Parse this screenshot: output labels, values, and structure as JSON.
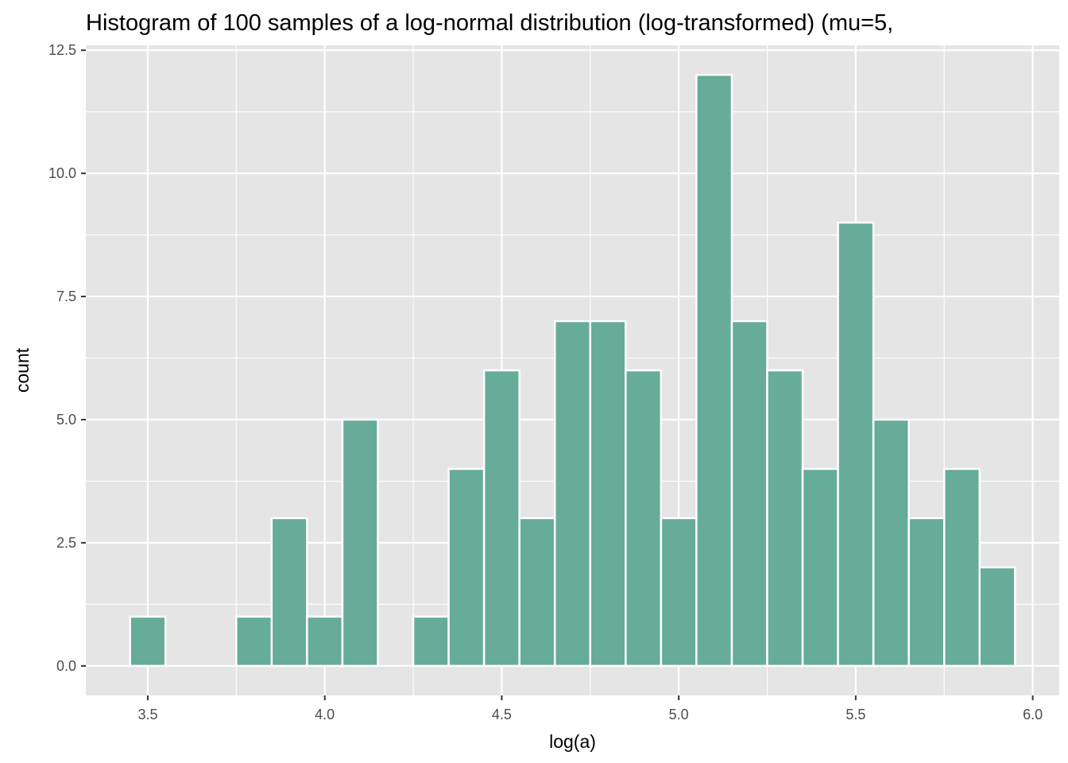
{
  "chart_data": {
    "type": "bar",
    "title": "Histogram of 100 samples of a log-normal distribution (log-transformed) (mu=5,",
    "xlabel": "log(a)",
    "ylabel": "count",
    "bin_width": 0.1,
    "bins": [
      {
        "x": 3.5,
        "count": 1
      },
      {
        "x": 3.6,
        "count": 0
      },
      {
        "x": 3.7,
        "count": 0
      },
      {
        "x": 3.8,
        "count": 1
      },
      {
        "x": 3.9,
        "count": 3
      },
      {
        "x": 4.0,
        "count": 1
      },
      {
        "x": 4.1,
        "count": 5
      },
      {
        "x": 4.2,
        "count": 0
      },
      {
        "x": 4.3,
        "count": 1
      },
      {
        "x": 4.4,
        "count": 4
      },
      {
        "x": 4.5,
        "count": 6
      },
      {
        "x": 4.6,
        "count": 3
      },
      {
        "x": 4.7,
        "count": 7
      },
      {
        "x": 4.8,
        "count": 7
      },
      {
        "x": 4.9,
        "count": 6
      },
      {
        "x": 5.0,
        "count": 3
      },
      {
        "x": 5.1,
        "count": 12
      },
      {
        "x": 5.2,
        "count": 7
      },
      {
        "x": 5.3,
        "count": 6
      },
      {
        "x": 5.4,
        "count": 4
      },
      {
        "x": 5.5,
        "count": 9
      },
      {
        "x": 5.6,
        "count": 5
      },
      {
        "x": 5.7,
        "count": 3
      },
      {
        "x": 5.8,
        "count": 4
      },
      {
        "x": 5.9,
        "count": 2
      }
    ],
    "xlim": [
      3.325,
      6.075
    ],
    "ylim": [
      -0.6,
      12.6
    ],
    "x_ticks": [
      "3.5",
      "4.0",
      "4.5",
      "5.0",
      "5.5",
      "6.0"
    ],
    "y_ticks": [
      "0.0",
      "2.5",
      "5.0",
      "7.5",
      "10.0",
      "12.5"
    ],
    "grid": true,
    "colors": {
      "bar_fill": "#66ac99",
      "bar_outline": "#ffffff",
      "panel_background": "#e5e5e5",
      "grid_major": "#ffffff",
      "tick_text": "#4d4d4d"
    }
  }
}
